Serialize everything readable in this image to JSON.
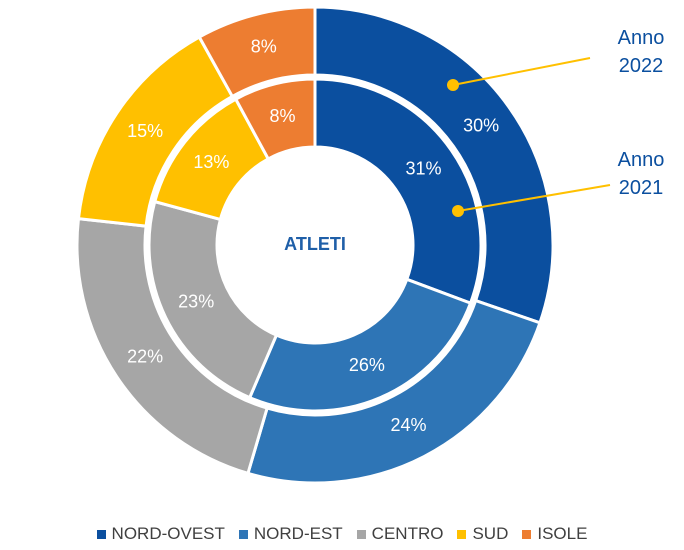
{
  "chart_data": {
    "type": "donut",
    "center_label": "ATLETI",
    "categories": [
      "NORD-OVEST",
      "NORD-EST",
      "CENTRO",
      "SUD",
      "ISOLE"
    ],
    "colors": [
      "#0b4f9f",
      "#2e75b6",
      "#a6a6a6",
      "#ffc000",
      "#ed7d31"
    ],
    "series": [
      {
        "name": "Anno 2022",
        "ring": "outer",
        "values": [
          30,
          24,
          22,
          15,
          8
        ],
        "value_labels": [
          "30%",
          "24%",
          "22%",
          "15%",
          "8%"
        ]
      },
      {
        "name": "Anno 2021",
        "ring": "inner",
        "values": [
          31,
          26,
          23,
          13,
          8
        ],
        "value_labels": [
          "31%",
          "26%",
          "23%",
          "13%",
          "8%"
        ]
      }
    ]
  }
}
